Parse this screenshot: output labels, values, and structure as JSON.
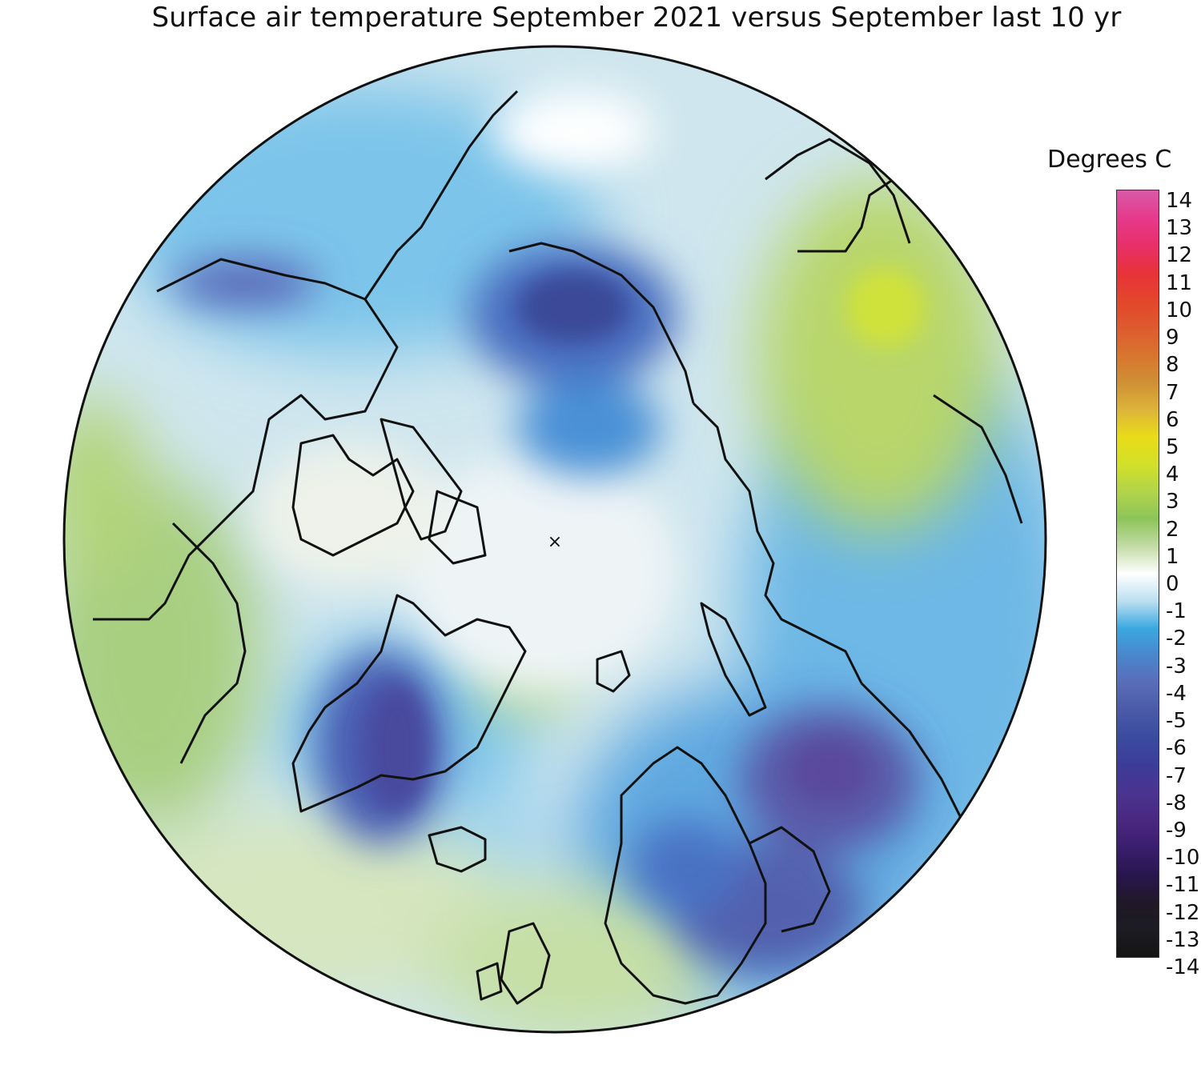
{
  "title": "Surface air temperature September 2021 versus September last 10 yr",
  "legend": {
    "title": "Degrees C",
    "min": -14,
    "max": 14,
    "ticks": [
      "14",
      "13",
      "12",
      "11",
      "10",
      "9",
      "8",
      "7",
      "6",
      "5",
      "4",
      "3",
      "2",
      "1",
      "0",
      "-1",
      "-2",
      "-3",
      "-4",
      "-5",
      "-6",
      "-7",
      "-8",
      "-9",
      "-10",
      "-11",
      "-12",
      "-13",
      "-14"
    ],
    "colors": [
      "#d85aa8",
      "#e63a8c",
      "#e82f6a",
      "#e8323a",
      "#e4452c",
      "#de5a2e",
      "#d8742e",
      "#cf8f34",
      "#dcb33a",
      "#e8dc18",
      "#d2e028",
      "#b2d44a",
      "#8cc45a",
      "#c3dba5",
      "#ffffff",
      "#bcdff0",
      "#3aa8e0",
      "#4a86cc",
      "#5a6cb8",
      "#4a5aa8",
      "#3a4b9e",
      "#3c3c98",
      "#4a3490",
      "#4a2880",
      "#3a1e6e",
      "#28164e",
      "#201828",
      "#1c1c22",
      "#141414"
    ]
  },
  "map": {
    "projection": "north-polar-stereographic",
    "pole_marker": "×",
    "coastline_color": "#111111"
  }
}
